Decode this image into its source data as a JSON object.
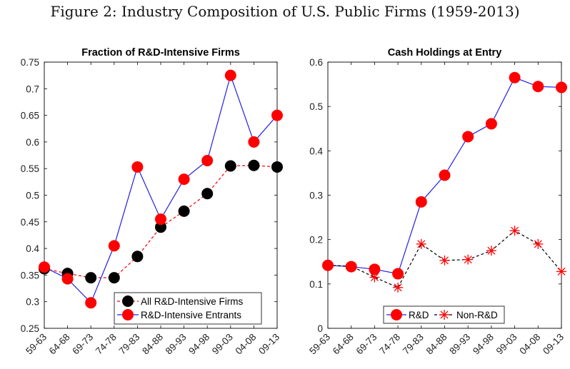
{
  "figure_title": "Figure 2: Industry Composition of U.S. Public Firms (1959-2013)",
  "colors": {
    "blue": "#2020e6",
    "red": "#ff0000",
    "black": "#000000",
    "dash": "#111111"
  },
  "chart_data": [
    {
      "type": "line",
      "title": "Fraction of R&D-Intensive Firms",
      "categories": [
        "59-63",
        "64-68",
        "69-73",
        "74-78",
        "79-83",
        "84-88",
        "89-93",
        "94-98",
        "99-03",
        "04-08",
        "09-13"
      ],
      "ylim": [
        0.25,
        0.75
      ],
      "yticks": [
        "0.25",
        "0.3",
        "0.35",
        "0.4",
        "0.45",
        "0.5",
        "0.55",
        "0.6",
        "0.65",
        "0.7",
        "0.75"
      ],
      "legend_position": "bottom-right",
      "series": [
        {
          "name": "All R&D-Intensive Firms",
          "line": "dashed",
          "line_color": "red",
          "marker": "circle",
          "marker_color": "black",
          "values": [
            0.362,
            0.353,
            0.345,
            0.345,
            0.385,
            0.44,
            0.47,
            0.503,
            0.555,
            0.556,
            0.553
          ]
        },
        {
          "name": "R&D-Intensive Entrants",
          "line": "solid",
          "line_color": "blue",
          "marker": "circle",
          "marker_color": "red",
          "values": [
            0.365,
            0.343,
            0.298,
            0.405,
            0.553,
            0.455,
            0.53,
            0.565,
            0.725,
            0.6,
            0.65
          ]
        }
      ]
    },
    {
      "type": "line",
      "title": "Cash Holdings at Entry",
      "categories": [
        "59-63",
        "64-68",
        "69-73",
        "74-78",
        "79-83",
        "84-88",
        "89-93",
        "94-98",
        "99-03",
        "04-08",
        "09-13"
      ],
      "ylim": [
        0,
        0.6
      ],
      "yticks": [
        "0",
        "0.1",
        "0.2",
        "0.3",
        "0.4",
        "0.5",
        "0.6"
      ],
      "legend_position": "bottom-center",
      "series": [
        {
          "name": "R&D",
          "line": "solid",
          "line_color": "blue",
          "marker": "circle",
          "marker_color": "red",
          "values": [
            0.142,
            0.139,
            0.133,
            0.123,
            0.285,
            0.345,
            0.432,
            0.461,
            0.565,
            0.545,
            0.543
          ]
        },
        {
          "name": "Non-R&D",
          "line": "dashed",
          "line_color": "black",
          "marker": "asterisk",
          "marker_color": "red",
          "values": [
            0.142,
            0.14,
            0.115,
            0.092,
            0.19,
            0.153,
            0.155,
            0.175,
            0.22,
            0.19,
            0.128
          ]
        }
      ]
    }
  ]
}
